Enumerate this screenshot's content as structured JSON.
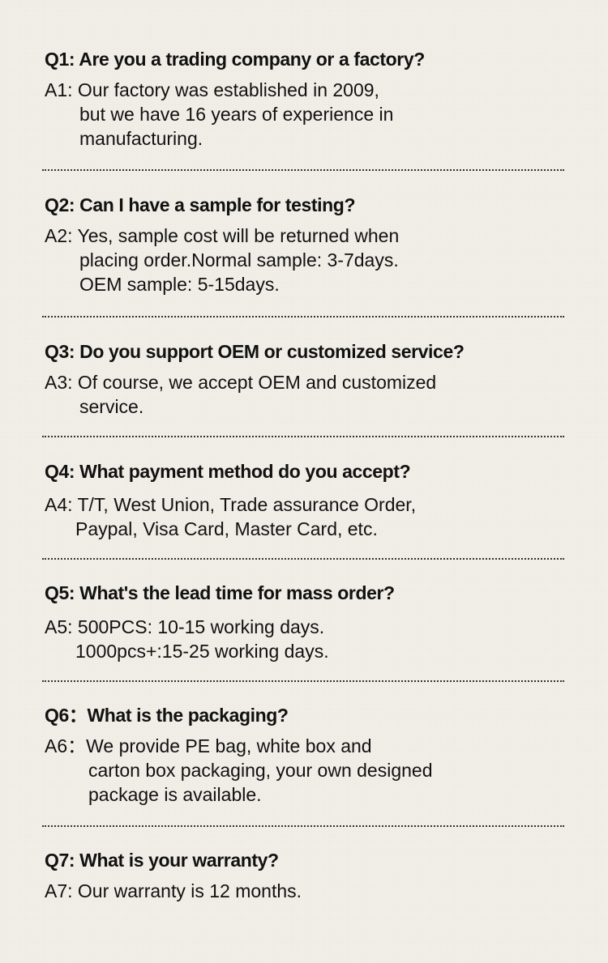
{
  "faq": [
    {
      "q": "Q1: Are you a trading company or a factory?",
      "a": [
        "A1: Our factory was established in 2009,",
        "but we have 16 years of experience in",
        "manufacturing."
      ]
    },
    {
      "q": "Q2: Can I have a sample for testing?",
      "a": [
        "A2: Yes, sample cost will be returned when",
        "placing order.Normal sample: 3-7days.",
        "OEM sample: 5-15days."
      ]
    },
    {
      "q": "Q3: Do you support OEM or customized service?",
      "a": [
        "A3: Of course, we accept OEM and customized",
        "service."
      ]
    },
    {
      "q": "Q4: What payment method do you accept?",
      "a": [
        "A4: T/T, West Union, Trade assurance Order,",
        "Paypal, Visa Card, Master Card, etc."
      ]
    },
    {
      "q": "Q5: What's the lead time for mass order?",
      "a": [
        "A5: 500PCS: 10-15 working days.",
        "1000pcs+:15-25 working days."
      ]
    },
    {
      "q": "Q6：What is the packaging?",
      "a": [
        "A6：We provide PE bag, white box and",
        "carton box packaging, your own designed",
        "package is available."
      ]
    },
    {
      "q": "Q7: What is your warranty?",
      "a": [
        "A7: Our warranty is 12 months."
      ]
    }
  ]
}
